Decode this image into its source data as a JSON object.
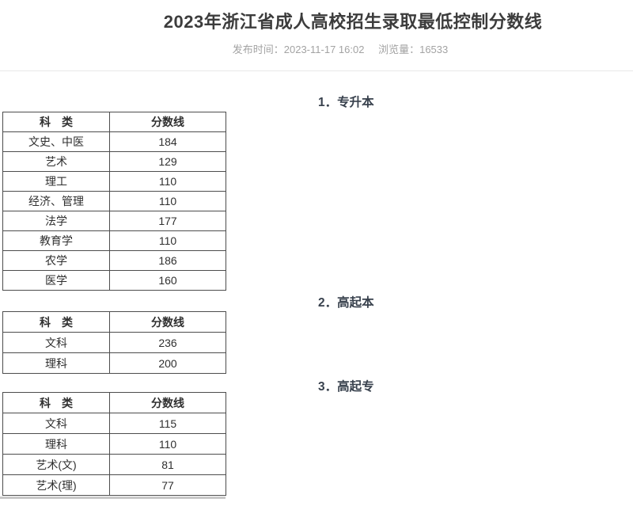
{
  "page": {
    "title": "2023年浙江省成人高校招生录取最低控制分数线",
    "publish_time_label": "发布时间：",
    "publish_time": "2023-11-17 16:02",
    "views_label": "浏览量：",
    "views": "16533"
  },
  "sections": [
    {
      "heading": "1．专升本",
      "table": {
        "headers": [
          "科　类",
          "分数线"
        ],
        "rows": [
          [
            "文史、中医",
            "184"
          ],
          [
            "艺术",
            "129"
          ],
          [
            "理工",
            "110"
          ],
          [
            "经济、管理",
            "110"
          ],
          [
            "法学",
            "177"
          ],
          [
            "教育学",
            "110"
          ],
          [
            "农学",
            "186"
          ],
          [
            "医学",
            "160"
          ]
        ]
      }
    },
    {
      "heading": "2．高起本",
      "table": {
        "headers": [
          "科　类",
          "分数线"
        ],
        "rows": [
          [
            "文科",
            "236"
          ],
          [
            "理科",
            "200"
          ]
        ]
      }
    },
    {
      "heading": "3．高起专",
      "table": {
        "headers": [
          "科　类",
          "分数线"
        ],
        "rows": [
          [
            "文科",
            "115"
          ],
          [
            "理科",
            "110"
          ],
          [
            "艺术(文)",
            "81"
          ],
          [
            "艺术(理)",
            "77"
          ]
        ]
      }
    }
  ],
  "colors": {
    "title_text": "#3c3c3c",
    "meta_text": "#a3a3a3",
    "heading_text": "#38414d",
    "table_border": "#4d4d4d",
    "divider": "#e8e8e8"
  }
}
